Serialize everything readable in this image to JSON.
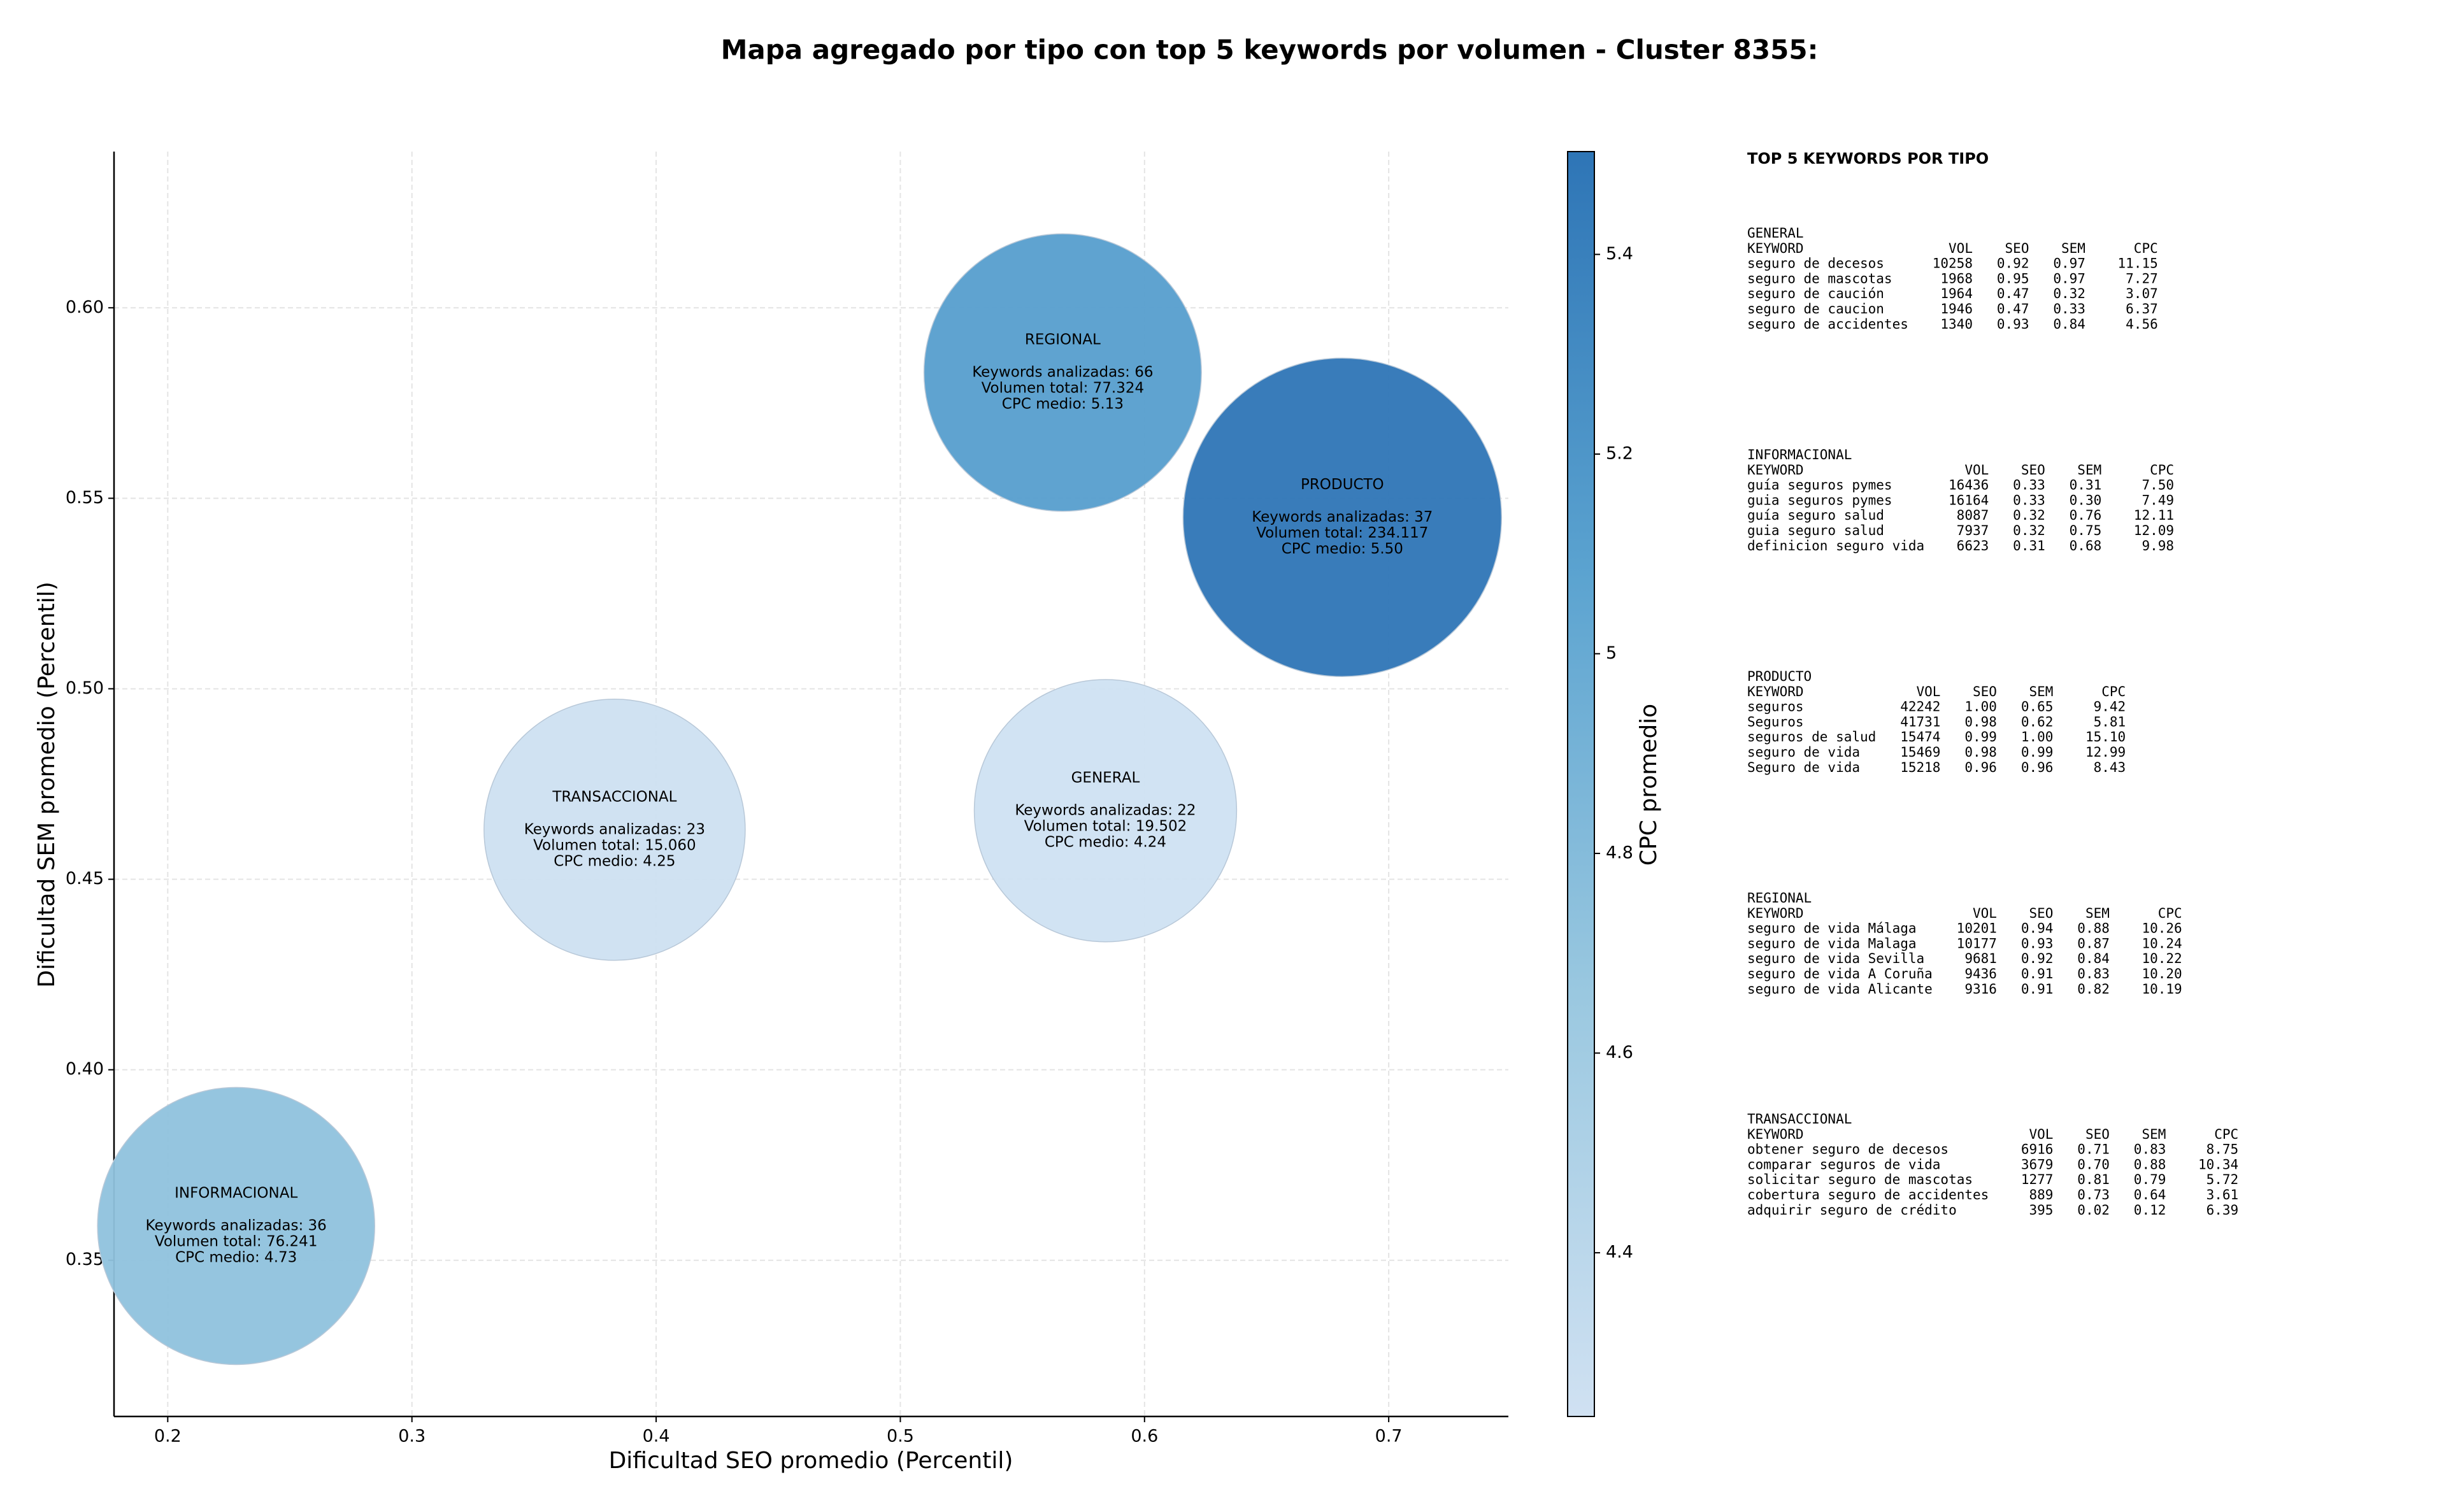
{
  "chart_data": {
    "type": "bubble",
    "title": "Mapa agregado por tipo con top 5 keywords por volumen - Cluster 8355:",
    "x_label": "Dificultad SEO promedio (Percentil)",
    "y_label": "Dificultad SEM promedio (Percentil)",
    "xlim": [
      0.178,
      0.749
    ],
    "ylim": [
      0.309,
      0.641
    ],
    "xticks": [
      0.2,
      0.3,
      0.4,
      0.5,
      0.6,
      0.7
    ],
    "yticks": [
      {
        "value": 0.35,
        "label": "0.35"
      },
      {
        "value": 0.4,
        "label": "0.40"
      },
      {
        "value": 0.45,
        "label": "0.45"
      },
      {
        "value": 0.5,
        "label": "0.50"
      },
      {
        "value": 0.55,
        "label": "0.55"
      },
      {
        "value": 0.6,
        "label": "0.60"
      }
    ],
    "grid": true,
    "colorbar": {
      "label": "CPC promedio",
      "clim": [
        4.236,
        5.503
      ],
      "ticks": [
        4.4,
        4.6,
        4.8,
        5.0,
        5.2,
        5.4
      ],
      "colors": [
        "#d0e1f2",
        "#9ac8e0",
        "#5ba3d0",
        "#2e75b6"
      ]
    },
    "points": [
      {
        "name": "REGIONAL",
        "x": 0.5665,
        "y": 0.583,
        "keywords": 66,
        "volume": 77324,
        "cpc": 5.13,
        "lines": [
          "Keywords analizadas: 66",
          "Volumen total: 77.324",
          "CPC medio: 5.13"
        ]
      },
      {
        "name": "PRODUCTO",
        "x": 0.681,
        "y": 0.545,
        "keywords": 37,
        "volume": 234117,
        "cpc": 5.5,
        "lines": [
          "Keywords analizadas: 37",
          "Volumen total: 234.117",
          "CPC medio: 5.50"
        ]
      },
      {
        "name": "TRANSACCIONAL",
        "x": 0.383,
        "y": 0.463,
        "keywords": 23,
        "volume": 15060,
        "cpc": 4.25,
        "lines": [
          "Keywords analizadas: 23",
          "Volumen total: 15.060",
          "CPC medio: 4.25"
        ]
      },
      {
        "name": "GENERAL",
        "x": 0.584,
        "y": 0.468,
        "keywords": 22,
        "volume": 19502,
        "cpc": 4.24,
        "lines": [
          "Keywords analizadas: 22",
          "Volumen total: 19.502",
          "CPC medio: 4.24"
        ]
      },
      {
        "name": "INFORMACIONAL",
        "x": 0.228,
        "y": 0.359,
        "keywords": 36,
        "volume": 76241,
        "cpc": 4.73,
        "lines": [
          "Keywords analizadas: 36",
          "Volumen total: 76.241",
          "CPC medio: 4.73"
        ]
      }
    ]
  },
  "side_panel": {
    "title": "TOP 5 KEYWORDS POR TIPO",
    "header": [
      "KEYWORD",
      "VOL",
      "SEO",
      "SEM",
      "CPC"
    ],
    "sections": [
      {
        "name": "GENERAL",
        "rows": [
          [
            "seguro de decesos",
            "10258",
            "0.92",
            "0.97",
            "11.15"
          ],
          [
            "seguro de mascotas",
            "1968",
            "0.95",
            "0.97",
            "7.27"
          ],
          [
            "seguro de caución",
            "1964",
            "0.47",
            "0.32",
            "3.07"
          ],
          [
            "seguro de caucion",
            "1946",
            "0.47",
            "0.33",
            "6.37"
          ],
          [
            "seguro de accidentes",
            "1340",
            "0.93",
            "0.84",
            "4.56"
          ]
        ]
      },
      {
        "name": "INFORMACIONAL",
        "rows": [
          [
            "guía seguros pymes",
            "16436",
            "0.33",
            "0.31",
            "7.50"
          ],
          [
            "guia seguros pymes",
            "16164",
            "0.33",
            "0.30",
            "7.49"
          ],
          [
            "guía seguro salud",
            "8087",
            "0.32",
            "0.76",
            "12.11"
          ],
          [
            "guia seguro salud",
            "7937",
            "0.32",
            "0.75",
            "12.09"
          ],
          [
            "definicion seguro vida",
            "6623",
            "0.31",
            "0.68",
            "9.98"
          ]
        ]
      },
      {
        "name": "PRODUCTO",
        "rows": [
          [
            "seguros",
            "42242",
            "1.00",
            "0.65",
            "9.42"
          ],
          [
            "Seguros",
            "41731",
            "0.98",
            "0.62",
            "5.81"
          ],
          [
            "seguros de salud",
            "15474",
            "0.99",
            "1.00",
            "15.10"
          ],
          [
            "seguro de vida",
            "15469",
            "0.98",
            "0.99",
            "12.99"
          ],
          [
            "Seguro de vida",
            "15218",
            "0.96",
            "0.96",
            "8.43"
          ]
        ]
      },
      {
        "name": "REGIONAL",
        "rows": [
          [
            "seguro de vida Málaga",
            "10201",
            "0.94",
            "0.88",
            "10.26"
          ],
          [
            "seguro de vida Malaga",
            "10177",
            "0.93",
            "0.87",
            "10.24"
          ],
          [
            "seguro de vida Sevilla",
            "9681",
            "0.92",
            "0.84",
            "10.22"
          ],
          [
            "seguro de vida A Coruña",
            "9436",
            "0.91",
            "0.83",
            "10.20"
          ],
          [
            "seguro de vida Alicante",
            "9316",
            "0.91",
            "0.82",
            "10.19"
          ]
        ]
      },
      {
        "name": "TRANSACCIONAL",
        "rows": [
          [
            "obtener seguro de decesos",
            "6916",
            "0.71",
            "0.83",
            "8.75"
          ],
          [
            "comparar seguros de vida",
            "3679",
            "0.70",
            "0.88",
            "10.34"
          ],
          [
            "solicitar seguro de mascotas",
            "1277",
            "0.81",
            "0.79",
            "5.72"
          ],
          [
            "cobertura seguro de accidentes",
            "889",
            "0.73",
            "0.64",
            "3.61"
          ],
          [
            "adquirir seguro de crédito",
            "395",
            "0.02",
            "0.12",
            "6.39"
          ]
        ]
      }
    ]
  }
}
